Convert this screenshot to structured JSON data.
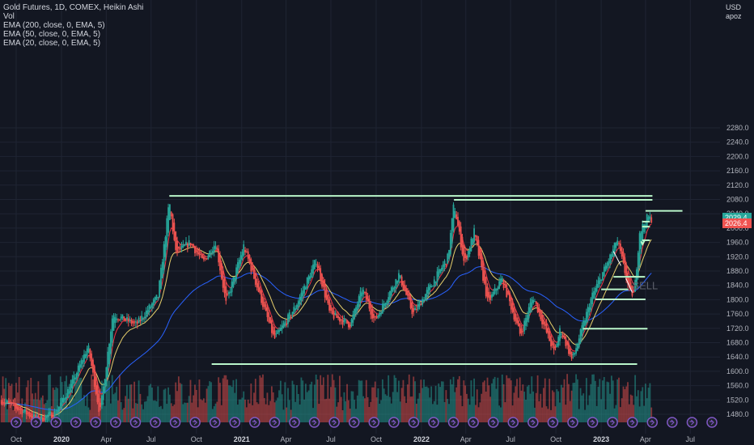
{
  "legend": {
    "title": "Gold Futures, 1D, COMEX, Heikin Ashi",
    "vol": "Vol",
    "ema200": "EMA (200, close, 0, EMA, 5)",
    "ema50": "EMA (50, close, 0, EMA, 5)",
    "ema20": "EMA (20, close, 0, EMA, 5)"
  },
  "header": {
    "currency": "USD",
    "user": "apoz"
  },
  "price_tags": {
    "last": "2029.4",
    "prev": "2026.4"
  },
  "colors": {
    "background": "#131722",
    "up": "#26a69a",
    "down": "#ef5350",
    "ema200": "#2962ff",
    "ema50": "#e8d06c",
    "ema20": "#f23645",
    "levels": "#b9f6ca",
    "grid": "#1f2433"
  },
  "annotation": "SELL",
  "chart_data": {
    "type": "candlestick",
    "title": "Gold Futures, 1D, COMEX, Heikin Ashi",
    "ylabel": "USD",
    "ylim": [
      1460,
      2300
    ],
    "y_ticks": [
      1480,
      1520,
      1560,
      1600,
      1640,
      1680,
      1720,
      1760,
      1800,
      1840,
      1880,
      1920,
      1960,
      2000,
      2040,
      2080,
      2120,
      2160,
      2200,
      2240,
      2280
    ],
    "x_ticks": [
      {
        "label": "Oct",
        "bold": false
      },
      {
        "label": "2020",
        "bold": true
      },
      {
        "label": "Apr",
        "bold": false
      },
      {
        "label": "Jul",
        "bold": false
      },
      {
        "label": "Oct",
        "bold": false
      },
      {
        "label": "2021",
        "bold": true
      },
      {
        "label": "Apr",
        "bold": false
      },
      {
        "label": "Jul",
        "bold": false
      },
      {
        "label": "Oct",
        "bold": false
      },
      {
        "label": "2022",
        "bold": true
      },
      {
        "label": "Apr",
        "bold": false
      },
      {
        "label": "Jul",
        "bold": false
      },
      {
        "label": "Oct",
        "bold": false
      },
      {
        "label": "2023",
        "bold": true
      },
      {
        "label": "Apr",
        "bold": false
      },
      {
        "label": "Jul",
        "bold": false
      }
    ],
    "price_anchors": [
      [
        "2019-09-01",
        1520
      ],
      [
        "2019-11-15",
        1465
      ],
      [
        "2019-12-20",
        1485
      ],
      [
        "2020-01-20",
        1560
      ],
      [
        "2020-02-24",
        1670
      ],
      [
        "2020-03-19",
        1480
      ],
      [
        "2020-04-14",
        1760
      ],
      [
        "2020-06-01",
        1730
      ],
      [
        "2020-07-15",
        1810
      ],
      [
        "2020-08-07",
        2075
      ],
      [
        "2020-08-20",
        1930
      ],
      [
        "2020-09-18",
        1960
      ],
      [
        "2020-10-15",
        1905
      ],
      [
        "2020-11-09",
        1960
      ],
      [
        "2020-11-30",
        1790
      ],
      [
        "2021-01-05",
        1950
      ],
      [
        "2021-03-08",
        1690
      ],
      [
        "2021-04-20",
        1780
      ],
      [
        "2021-06-01",
        1910
      ],
      [
        "2021-06-29",
        1760
      ],
      [
        "2021-08-09",
        1730
      ],
      [
        "2021-09-03",
        1830
      ],
      [
        "2021-09-28",
        1740
      ],
      [
        "2021-11-16",
        1870
      ],
      [
        "2021-12-15",
        1760
      ],
      [
        "2022-01-25",
        1850
      ],
      [
        "2022-02-24",
        1920
      ],
      [
        "2022-03-08",
        2070
      ],
      [
        "2022-03-29",
        1900
      ],
      [
        "2022-04-18",
        1990
      ],
      [
        "2022-05-16",
        1790
      ],
      [
        "2022-06-13",
        1860
      ],
      [
        "2022-07-21",
        1700
      ],
      [
        "2022-08-15",
        1810
      ],
      [
        "2022-09-28",
        1650
      ],
      [
        "2022-10-10",
        1720
      ],
      [
        "2022-11-03",
        1630
      ],
      [
        "2022-12-13",
        1810
      ],
      [
        "2023-01-26",
        1940
      ],
      [
        "2023-02-02",
        1970
      ],
      [
        "2023-02-28",
        1820
      ],
      [
        "2023-03-09",
        1815
      ],
      [
        "2023-03-20",
        1990
      ],
      [
        "2023-04-05",
        2030
      ],
      [
        "2023-04-13",
        2026
      ]
    ],
    "series": [
      {
        "name": "Vol"
      },
      {
        "name": "EMA (200, close, 0, EMA, 5)"
      },
      {
        "name": "EMA (50, close, 0, EMA, 5)"
      },
      {
        "name": "EMA (20, close, 0, EMA, 5)"
      }
    ],
    "horizontal_levels": [
      {
        "price": 2090,
        "from": "2020-08-07",
        "to": "2023-04-15"
      },
      {
        "price": 2079,
        "from": "2022-03-08",
        "to": "2023-04-15"
      },
      {
        "price": 2048,
        "from": "2023-04-01",
        "to": "2023-06-15"
      },
      {
        "price": 2004,
        "from": "2023-03-25",
        "to": "2023-04-10"
      },
      {
        "price": 2018,
        "from": "2023-03-25",
        "to": "2023-04-10"
      },
      {
        "price": 1966,
        "from": "2023-03-25",
        "to": "2023-04-10"
      },
      {
        "price": 1864,
        "from": "2023-01-26",
        "to": "2023-03-31"
      },
      {
        "price": 1829,
        "from": "2023-01-01",
        "to": "2023-02-25"
      },
      {
        "price": 1801,
        "from": "2022-12-20",
        "to": "2023-04-01"
      },
      {
        "price": 1719,
        "from": "2022-11-25",
        "to": "2023-04-05"
      },
      {
        "price": 1620,
        "from": "2020-11-01",
        "to": "2023-03-15"
      }
    ],
    "event_count": 36
  }
}
